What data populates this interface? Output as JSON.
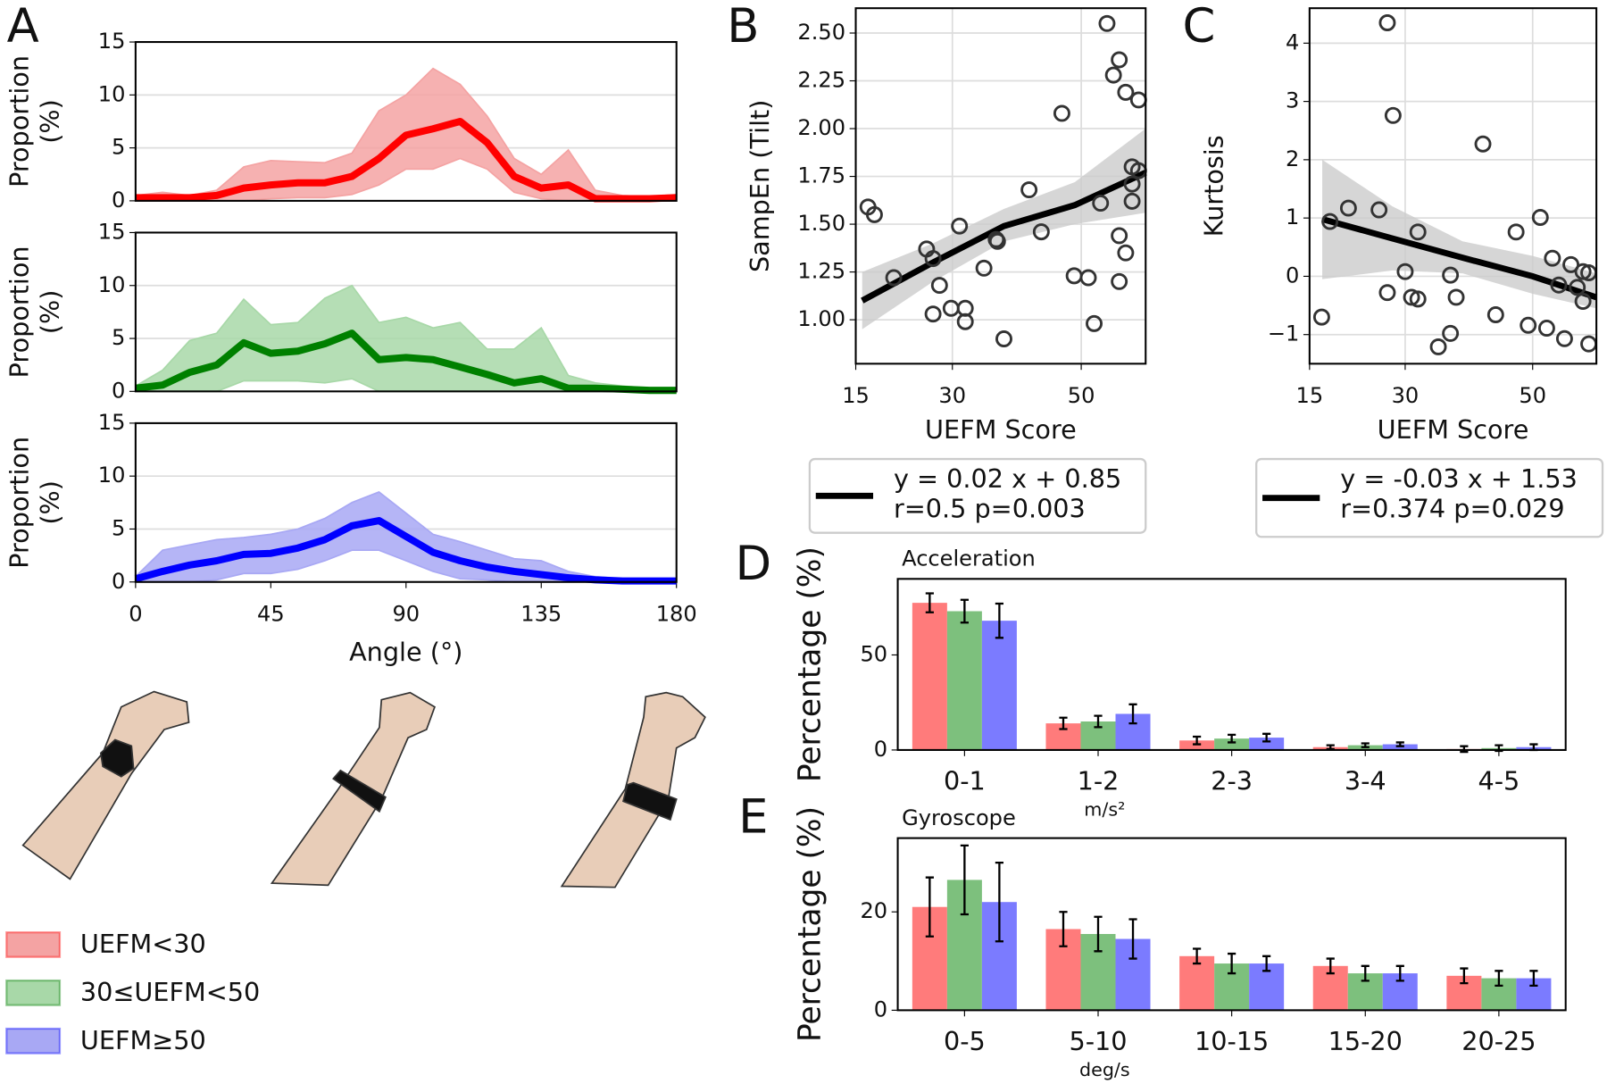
{
  "chart_data": [
    {
      "type": "line",
      "panel_label": "A",
      "ylabel": [
        "Proportion",
        "(%)"
      ],
      "xlim": [
        0,
        180
      ],
      "ylim": [
        0,
        15
      ],
      "yticks": [
        0,
        5,
        10,
        15
      ],
      "grid": true,
      "x": [
        0,
        9,
        18,
        27,
        36,
        45,
        54,
        63,
        72,
        81,
        90,
        99,
        108,
        117,
        126,
        135,
        144,
        153,
        162,
        171,
        180
      ],
      "series": [
        {
          "name": "UEFM<30",
          "color": "#ff0000",
          "band_color": "#f4a3a3",
          "values": [
            0.3,
            0.3,
            0.3,
            0.5,
            1.2,
            1.5,
            1.7,
            1.7,
            2.3,
            4,
            6.2,
            6.8,
            7.5,
            5.5,
            2.3,
            1.2,
            1.5,
            0.2,
            0.2,
            0.2,
            0.3
          ],
          "lower": [
            0,
            0,
            0,
            0,
            0,
            0.2,
            0.3,
            0.3,
            0.6,
            1.5,
            3,
            3,
            4,
            3,
            0.8,
            0.2,
            0,
            0,
            0,
            0,
            0
          ],
          "upper": [
            0.5,
            0.8,
            0.5,
            1,
            3.2,
            3.8,
            3.7,
            3.6,
            4.5,
            8.5,
            10,
            12.5,
            11,
            8,
            4,
            2.5,
            4.8,
            1,
            0.5,
            0.4,
            0.6
          ]
        }
      ]
    },
    {
      "type": "line",
      "ylabel": [
        "Proportion",
        "(%)"
      ],
      "xlim": [
        0,
        180
      ],
      "ylim": [
        0,
        15
      ],
      "yticks": [
        0,
        5,
        10,
        15
      ],
      "grid": true,
      "x": [
        0,
        9,
        18,
        27,
        36,
        45,
        54,
        63,
        72,
        81,
        90,
        99,
        108,
        117,
        126,
        135,
        144,
        153,
        162,
        171,
        180
      ],
      "series": [
        {
          "name": "30≤UEFM<50",
          "color": "#008000",
          "band_color": "#a8d8a8",
          "values": [
            0.3,
            0.6,
            1.8,
            2.5,
            4.6,
            3.6,
            3.8,
            4.5,
            5.5,
            3,
            3.2,
            3,
            2.3,
            1.6,
            0.8,
            1.2,
            0.3,
            0.3,
            0.2,
            0.1,
            0.1
          ],
          "lower": [
            0,
            0,
            0,
            0,
            1,
            1,
            1,
            0.8,
            1.2,
            0,
            0,
            0,
            0,
            0,
            0,
            0,
            0,
            0,
            0,
            0,
            0
          ],
          "upper": [
            0.5,
            2,
            4.8,
            5.5,
            8.7,
            6.3,
            6.5,
            8.8,
            10,
            6.5,
            7,
            6,
            6.5,
            4,
            4,
            6,
            1.5,
            0.8,
            0.5,
            0.3,
            0.2
          ]
        }
      ]
    },
    {
      "type": "line",
      "ylabel": [
        "Proportion",
        "(%)"
      ],
      "xlabel": "Angle (°)",
      "xlim": [
        0,
        180
      ],
      "xticks": [
        0,
        45,
        90,
        135,
        180
      ],
      "ylim": [
        0,
        15
      ],
      "yticks": [
        0,
        5,
        10,
        15
      ],
      "grid": true,
      "x": [
        0,
        9,
        18,
        27,
        36,
        45,
        54,
        63,
        72,
        81,
        90,
        99,
        108,
        117,
        126,
        135,
        144,
        153,
        162,
        171,
        180
      ],
      "series": [
        {
          "name": "UEFM≥50",
          "color": "#0000ff",
          "band_color": "#a8a8f4",
          "values": [
            0.3,
            1,
            1.6,
            2,
            2.6,
            2.7,
            3.2,
            4,
            5.3,
            5.8,
            4.3,
            2.8,
            2,
            1.4,
            1,
            0.7,
            0.4,
            0.2,
            0.1,
            0.1,
            0.1
          ],
          "lower": [
            0,
            0,
            0,
            0.2,
            0.8,
            0.8,
            1.2,
            2,
            3,
            3,
            2,
            1,
            0.3,
            0.2,
            0,
            0,
            0,
            0,
            0,
            0,
            0
          ],
          "upper": [
            0.5,
            3,
            3.5,
            4,
            4.2,
            4.5,
            5,
            6,
            7.5,
            8.5,
            6.5,
            4.5,
            3.8,
            3,
            2.2,
            2,
            1,
            0.5,
            0.3,
            0.2,
            0.2
          ]
        }
      ]
    },
    {
      "type": "scatter",
      "panel_label": "B",
      "ylabel": "SampEn (Tilt)",
      "xlabel": "UEFM Score",
      "xlim": [
        15,
        60
      ],
      "xticks": [
        15,
        30,
        50
      ],
      "ylim": [
        0.77,
        2.63
      ],
      "yticks": [
        {
          "value": 1,
          "label": "1.00"
        },
        {
          "value": 1.25,
          "label": "1.25"
        },
        {
          "value": 1.5,
          "label": "1.50"
        },
        {
          "value": 1.75,
          "label": "1.75"
        },
        {
          "value": 2,
          "label": "2.00"
        },
        {
          "value": 2.25,
          "label": "2.25"
        },
        {
          "value": 2.5,
          "label": "2.50"
        }
      ],
      "grid": true,
      "x": [
        16.9,
        17.9,
        20.9,
        26,
        27,
        27,
        28,
        29.8,
        31.1,
        32,
        32,
        34.9,
        36.8,
        37,
        38,
        41.9,
        43.8,
        47,
        48.9,
        51.1,
        52,
        53,
        54,
        55,
        55.9,
        55.9,
        55.9,
        56.9,
        56.9,
        57.9,
        57.9,
        57.9,
        58.9,
        58.9
      ],
      "values": [
        1.59,
        1.55,
        1.22,
        1.37,
        1.32,
        1.03,
        1.18,
        1.06,
        1.49,
        1.06,
        0.99,
        1.27,
        1.42,
        1.41,
        0.9,
        1.68,
        1.46,
        2.08,
        1.23,
        1.22,
        0.98,
        1.61,
        2.55,
        2.28,
        2.36,
        1.44,
        1.2,
        1.35,
        2.19,
        1.8,
        1.71,
        1.62,
        2.15,
        1.78
      ],
      "color": "#333333",
      "fit": {
        "color": "#000000",
        "band_color": "#cccccc",
        "x": [
          16,
          27,
          38,
          49,
          60
        ],
        "values": [
          1.1,
          1.3,
          1.49,
          1.6,
          1.77
        ],
        "lower": [
          0.95,
          1.2,
          1.41,
          1.5,
          1.56
        ],
        "upper": [
          1.25,
          1.4,
          1.58,
          1.72,
          2.0
        ]
      },
      "legend": [
        "y = 0.02 x + 0.85",
        "r=0.5 p=0.003"
      ]
    },
    {
      "type": "scatter",
      "panel_label": "C",
      "ylabel": "Kurtosis",
      "xlabel": "UEFM Score",
      "xlim": [
        15,
        60
      ],
      "xticks": [
        15,
        30,
        50
      ],
      "ylim": [
        -1.5,
        4.6
      ],
      "yticks": [
        {
          "value": -1,
          "label": "−1"
        },
        0,
        1,
        2,
        3,
        4
      ],
      "grid": true,
      "x": [
        16.9,
        18.2,
        21.1,
        25.9,
        27.2,
        27.2,
        28.1,
        30,
        31,
        32,
        32,
        35.2,
        37.1,
        37.1,
        38,
        42.2,
        44.2,
        47.4,
        49.3,
        51.2,
        52.2,
        53.1,
        54.1,
        55,
        56,
        57,
        57.9,
        57.9,
        58.8,
        58.8
      ],
      "values": [
        -0.7,
        0.94,
        1.17,
        1.14,
        4.35,
        -0.28,
        2.76,
        0.08,
        -0.36,
        -0.39,
        0.76,
        -1.21,
        -0.98,
        0.02,
        -0.36,
        2.27,
        -0.66,
        0.76,
        -0.84,
        1.01,
        -0.89,
        0.31,
        -0.15,
        -1.07,
        0.2,
        -0.19,
        0.08,
        -0.43,
        -1.16,
        0.06
      ],
      "color": "#333333",
      "fit": {
        "color": "#000000",
        "band_color": "#cccccc",
        "x": [
          17,
          28,
          39,
          50,
          60
        ],
        "values": [
          0.98,
          0.65,
          0.32,
          0.0,
          -0.36
        ],
        "lower": [
          -0.05,
          0.1,
          0.05,
          -0.3,
          -0.55
        ],
        "upper": [
          2.0,
          1.2,
          0.6,
          0.35,
          0.05
        ]
      },
      "legend": [
        "y = -0.03 x + 1.53",
        "r=0.374 p=0.029"
      ]
    },
    {
      "type": "bar",
      "panel_label": "D",
      "subtitle": "Acceleration",
      "ylabel": "Percentage (%)",
      "xlabel": "m/s²",
      "ylim": [
        0,
        90
      ],
      "yticks": [
        0,
        50
      ],
      "categories": [
        "0-1",
        "1-2",
        "2-3",
        "3-4",
        "4-5"
      ],
      "series": [
        {
          "color": "#ff7b7b",
          "values": [
            77.4,
            14,
            5,
            1.5,
            0.5
          ],
          "errors": [
            5,
            3,
            2,
            1,
            1.5
          ]
        },
        {
          "color": "#7dc07d",
          "values": [
            73,
            15,
            6,
            2.5,
            1
          ],
          "errors": [
            6,
            3,
            2,
            1,
            1.5
          ]
        },
        {
          "color": "#7b7bff",
          "values": [
            68,
            19,
            6.5,
            3,
            1.5
          ],
          "errors": [
            9,
            5,
            2,
            1,
            1.5
          ]
        }
      ]
    },
    {
      "type": "bar",
      "panel_label": "E",
      "subtitle": "Gyroscope",
      "ylabel": "Percentage (%)",
      "xlabel": "deg/s",
      "ylim": [
        0,
        35
      ],
      "yticks": [
        0,
        20
      ],
      "categories": [
        "0-5",
        "5-10",
        "10-15",
        "15-20",
        "20-25"
      ],
      "series": [
        {
          "color": "#ff7b7b",
          "values": [
            21,
            16.5,
            11,
            9,
            7
          ],
          "errors": [
            6,
            3.5,
            1.5,
            1.5,
            1.5
          ]
        },
        {
          "color": "#7dc07d",
          "values": [
            26.5,
            15.5,
            9.5,
            7.5,
            6.5
          ],
          "errors": [
            7,
            3.5,
            2,
            1.5,
            1.5
          ]
        },
        {
          "color": "#7b7bff",
          "values": [
            22,
            14.5,
            9.5,
            7.5,
            6.5
          ],
          "errors": [
            8,
            4,
            1.5,
            1.5,
            1.5
          ]
        }
      ]
    }
  ]
}
